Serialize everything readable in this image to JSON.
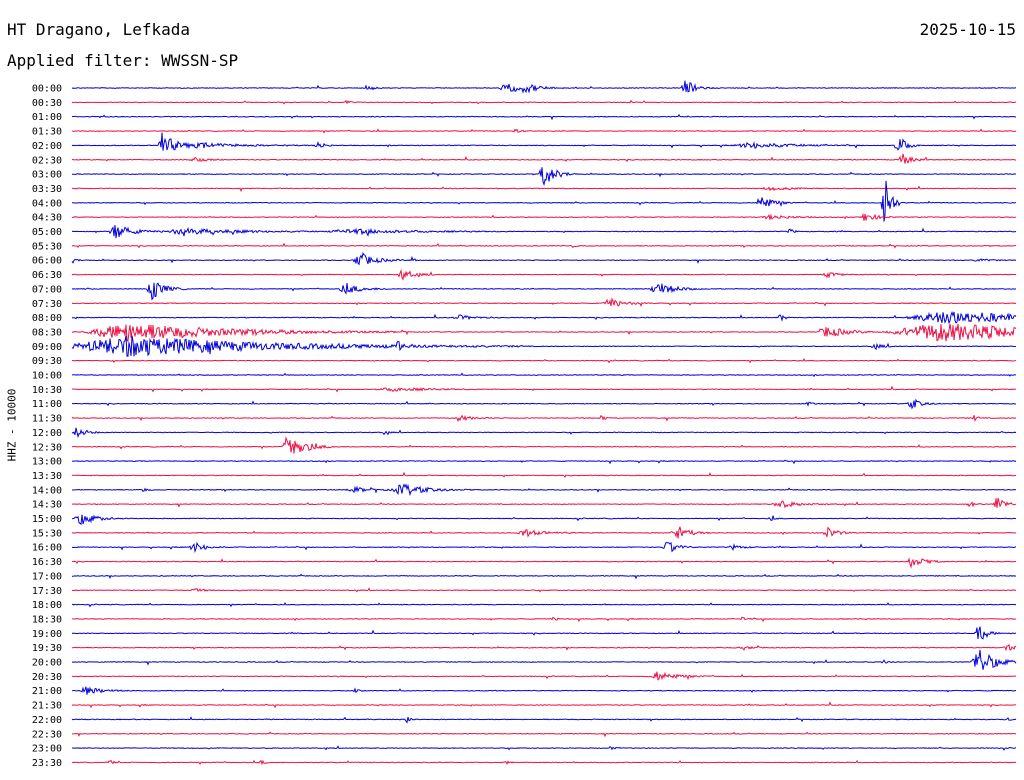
{
  "header": {
    "station": "HT Dragano, Lefkada",
    "date": "2025-10-15",
    "filter": "Applied filter: WWSSN-SP"
  },
  "chart_data": {
    "type": "line",
    "title": "HT Dragano, Lefkada",
    "ylabel": "HHZ - 10000",
    "colors": [
      "#0000dd",
      "#ee1144"
    ],
    "rows": [
      {
        "label": "00:00",
        "events": [
          [
            0.314,
            0.5,
            0.003
          ],
          [
            0.46,
            0.9,
            0.008
          ],
          [
            0.48,
            0.6,
            0.008
          ],
          [
            0.65,
            1.4,
            0.005
          ]
        ]
      },
      {
        "label": "00:30",
        "events": [
          [
            0.29,
            0.3,
            0.003
          ]
        ]
      },
      {
        "label": "01:00",
        "events": []
      },
      {
        "label": "01:30",
        "events": [
          [
            0.47,
            0.3,
            0.003
          ]
        ]
      },
      {
        "label": "02:00",
        "events": [
          [
            0.095,
            2.2,
            0.007
          ],
          [
            0.14,
            0.4,
            0.02
          ],
          [
            0.26,
            0.9,
            0.003
          ],
          [
            0.72,
            0.5,
            0.02
          ],
          [
            0.875,
            1.9,
            0.004
          ]
        ]
      },
      {
        "label": "02:30",
        "events": [
          [
            0.13,
            0.5,
            0.006
          ],
          [
            0.88,
            1.0,
            0.005
          ]
        ]
      },
      {
        "label": "03:00",
        "events": [
          [
            0.5,
            2.0,
            0.006
          ]
        ]
      },
      {
        "label": "03:30",
        "events": [
          [
            0.74,
            0.3,
            0.01
          ]
        ]
      },
      {
        "label": "04:00",
        "events": [
          [
            0.73,
            1.3,
            0.006
          ],
          [
            0.86,
            7.0,
            0.003
          ]
        ]
      },
      {
        "label": "04:30",
        "events": [
          [
            0.84,
            0.8,
            0.006
          ],
          [
            0.74,
            0.4,
            0.01
          ]
        ]
      },
      {
        "label": "05:00",
        "events": [
          [
            0.045,
            1.4,
            0.008
          ],
          [
            0.12,
            0.5,
            0.03
          ],
          [
            0.3,
            0.4,
            0.03
          ],
          [
            0.76,
            0.6,
            0.002
          ]
        ]
      },
      {
        "label": "05:30",
        "events": [
          [
            0.53,
            0.4,
            0.002
          ]
        ]
      },
      {
        "label": "06:00",
        "events": [
          [
            0.305,
            1.2,
            0.008
          ],
          [
            0.36,
            0.5,
            0.002
          ],
          [
            0.0,
            0.5,
            0.002
          ],
          [
            0.96,
            0.3,
            0.005
          ]
        ]
      },
      {
        "label": "06:30",
        "events": [
          [
            0.35,
            0.9,
            0.006
          ],
          [
            0.8,
            0.4,
            0.006
          ]
        ]
      },
      {
        "label": "07:00",
        "events": [
          [
            0.085,
            1.8,
            0.006
          ],
          [
            0.29,
            0.9,
            0.008
          ],
          [
            0.62,
            1.3,
            0.008
          ]
        ]
      },
      {
        "label": "07:30",
        "events": [
          [
            0.57,
            0.8,
            0.008
          ]
        ]
      },
      {
        "label": "08:00",
        "events": [
          [
            0.41,
            0.4,
            0.008
          ],
          [
            0.75,
            0.8,
            0.002
          ],
          [
            0.93,
            1.1,
            0.05
          ]
        ]
      },
      {
        "label": "08:30",
        "events": [
          [
            0.06,
            1.6,
            0.05
          ],
          [
            0.8,
            1.0,
            0.01
          ],
          [
            0.92,
            1.6,
            0.06
          ]
        ]
      },
      {
        "label": "09:00",
        "events": [
          [
            0.06,
            1.8,
            0.07
          ],
          [
            0.345,
            1.0,
            0.002
          ],
          [
            0.85,
            0.4,
            0.005
          ]
        ]
      },
      {
        "label": "09:30",
        "events": []
      },
      {
        "label": "10:00",
        "events": []
      },
      {
        "label": "10:30",
        "events": [
          [
            0.34,
            0.3,
            0.02
          ]
        ]
      },
      {
        "label": "11:00",
        "events": [
          [
            0.89,
            0.9,
            0.005
          ],
          [
            0.78,
            0.4,
            0.002
          ]
        ]
      },
      {
        "label": "11:30",
        "events": [
          [
            0.41,
            0.5,
            0.006
          ],
          [
            0.56,
            0.6,
            0.002
          ],
          [
            0.955,
            0.6,
            0.002
          ]
        ]
      },
      {
        "label": "12:00",
        "events": [
          [
            0.005,
            0.9,
            0.005
          ],
          [
            0.33,
            0.4,
            0.002
          ]
        ]
      },
      {
        "label": "12:30",
        "events": [
          [
            0.23,
            2.4,
            0.008
          ]
        ]
      },
      {
        "label": "13:00",
        "events": []
      },
      {
        "label": "13:30",
        "events": []
      },
      {
        "label": "14:00",
        "events": [
          [
            0.35,
            1.0,
            0.012
          ],
          [
            0.3,
            0.4,
            0.01
          ],
          [
            0.075,
            0.4,
            0.002
          ]
        ]
      },
      {
        "label": "14:30",
        "events": [
          [
            0.75,
            0.6,
            0.01
          ],
          [
            0.98,
            1.5,
            0.004
          ],
          [
            0.95,
            0.6,
            0.003
          ]
        ]
      },
      {
        "label": "15:00",
        "events": [
          [
            0.01,
            1.0,
            0.008
          ],
          [
            0.74,
            0.5,
            0.002
          ]
        ]
      },
      {
        "label": "15:30",
        "events": [
          [
            0.64,
            1.4,
            0.006
          ],
          [
            0.8,
            1.0,
            0.005
          ],
          [
            0.48,
            0.6,
            0.01
          ]
        ]
      },
      {
        "label": "16:00",
        "events": [
          [
            0.13,
            0.8,
            0.006
          ],
          [
            0.63,
            1.2,
            0.005
          ],
          [
            0.7,
            0.4,
            0.005
          ]
        ]
      },
      {
        "label": "16:30",
        "events": [
          [
            0.89,
            1.1,
            0.006
          ]
        ]
      },
      {
        "label": "17:00",
        "events": []
      },
      {
        "label": "17:30",
        "events": [
          [
            0.13,
            0.3,
            0.005
          ]
        ]
      },
      {
        "label": "18:00",
        "events": []
      },
      {
        "label": "18:30",
        "events": [
          [
            0.51,
            0.3,
            0.003
          ],
          [
            0.71,
            0.3,
            0.003
          ]
        ]
      },
      {
        "label": "19:00",
        "events": [
          [
            0.96,
            1.8,
            0.004
          ]
        ]
      },
      {
        "label": "19:30",
        "events": [
          [
            0.71,
            0.4,
            0.004
          ],
          [
            0.99,
            0.6,
            0.004
          ]
        ]
      },
      {
        "label": "20:00",
        "events": [
          [
            0.96,
            2.5,
            0.008
          ],
          [
            0.86,
            0.3,
            0.003
          ]
        ]
      },
      {
        "label": "20:30",
        "events": [
          [
            0.62,
            0.8,
            0.01
          ]
        ]
      },
      {
        "label": "21:00",
        "events": [
          [
            0.015,
            0.7,
            0.008
          ],
          [
            0.3,
            0.3,
            0.002
          ]
        ]
      },
      {
        "label": "21:30",
        "events": []
      },
      {
        "label": "22:00",
        "events": [
          [
            0.355,
            0.7,
            0.002
          ],
          [
            0.99,
            0.3,
            0.002
          ]
        ]
      },
      {
        "label": "22:30",
        "events": []
      },
      {
        "label": "23:00",
        "events": [
          [
            0.57,
            0.3,
            0.002
          ]
        ]
      },
      {
        "label": "23:30",
        "events": [
          [
            0.04,
            0.4,
            0.002
          ],
          [
            0.2,
            0.4,
            0.002
          ],
          [
            0.46,
            0.3,
            0.002
          ]
        ]
      }
    ]
  }
}
